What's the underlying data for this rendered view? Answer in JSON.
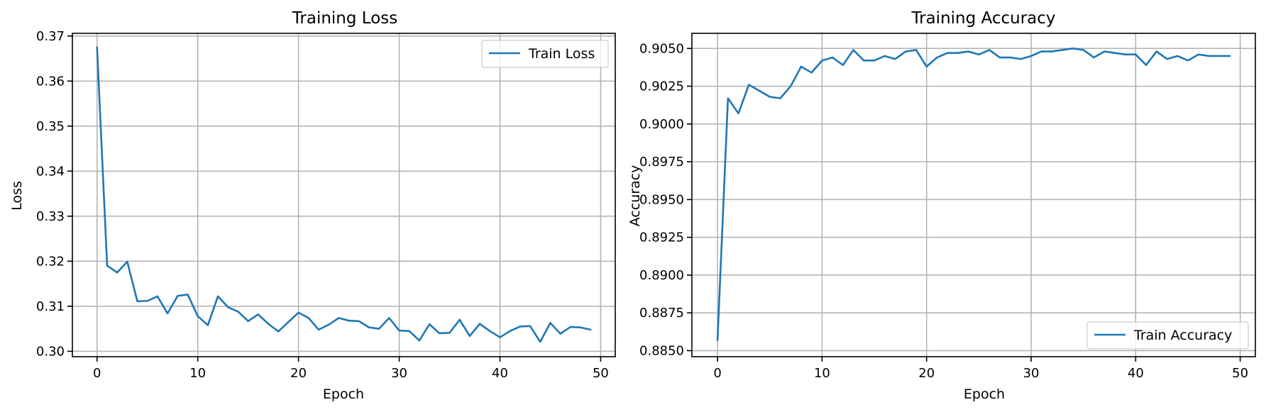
{
  "chart_data": [
    {
      "type": "line",
      "title": "Training Loss",
      "xlabel": "Epoch",
      "ylabel": "Loss",
      "xlim": [
        -2.45,
        51.45
      ],
      "ylim": [
        0.2988,
        0.3706
      ],
      "xticks": [
        0,
        10,
        20,
        30,
        40,
        50
      ],
      "xtick_labels": [
        "0",
        "10",
        "20",
        "30",
        "40",
        "50"
      ],
      "yticks": [
        0.3,
        0.31,
        0.32,
        0.33,
        0.34,
        0.35,
        0.36,
        0.37
      ],
      "ytick_labels": [
        "0.30",
        "0.31",
        "0.32",
        "0.33",
        "0.34",
        "0.35",
        "0.36",
        "0.37"
      ],
      "grid": true,
      "legend_position": "top-right",
      "series": [
        {
          "name": "Train Loss",
          "color": "#1f77b4",
          "x": [
            0,
            1,
            2,
            3,
            4,
            5,
            6,
            7,
            8,
            9,
            10,
            11,
            12,
            13,
            14,
            15,
            16,
            17,
            18,
            19,
            20,
            21,
            22,
            23,
            24,
            25,
            26,
            27,
            28,
            29,
            30,
            31,
            32,
            33,
            34,
            35,
            36,
            37,
            38,
            39,
            40,
            41,
            42,
            43,
            44,
            45,
            46,
            47,
            48,
            49
          ],
          "values": [
            0.3675,
            0.319,
            0.3175,
            0.3199,
            0.3111,
            0.3112,
            0.3122,
            0.3084,
            0.3123,
            0.3126,
            0.3078,
            0.3058,
            0.3122,
            0.3098,
            0.3088,
            0.3067,
            0.3082,
            0.3061,
            0.3044,
            0.3065,
            0.3086,
            0.3074,
            0.3048,
            0.3059,
            0.3074,
            0.3068,
            0.3067,
            0.3053,
            0.305,
            0.3074,
            0.3046,
            0.3045,
            0.3024,
            0.306,
            0.304,
            0.3041,
            0.307,
            0.3034,
            0.3061,
            0.3045,
            0.3031,
            0.3045,
            0.3055,
            0.3056,
            0.3021,
            0.3063,
            0.3039,
            0.3054,
            0.3053,
            0.3048
          ]
        }
      ]
    },
    {
      "type": "line",
      "title": "Training Accuracy",
      "xlabel": "Epoch",
      "ylabel": "Accuracy",
      "xlim": [
        -2.45,
        51.45
      ],
      "ylim": [
        0.8846,
        0.906
      ],
      "xticks": [
        0,
        10,
        20,
        30,
        40,
        50
      ],
      "xtick_labels": [
        "0",
        "10",
        "20",
        "30",
        "40",
        "50"
      ],
      "yticks": [
        0.885,
        0.8875,
        0.89,
        0.8925,
        0.895,
        0.8975,
        0.9,
        0.9025,
        0.905
      ],
      "ytick_labels": [
        "0.8850",
        "0.8875",
        "0.8900",
        "0.8925",
        "0.8950",
        "0.8975",
        "0.9000",
        "0.9025",
        "0.9050"
      ],
      "grid": true,
      "legend_position": "bottom-right",
      "series": [
        {
          "name": "Train Accuracy",
          "color": "#1f77b4",
          "x": [
            0,
            1,
            2,
            3,
            4,
            5,
            6,
            7,
            8,
            9,
            10,
            11,
            12,
            13,
            14,
            15,
            16,
            17,
            18,
            19,
            20,
            21,
            22,
            23,
            24,
            25,
            26,
            27,
            28,
            29,
            30,
            31,
            32,
            33,
            34,
            35,
            36,
            37,
            38,
            39,
            40,
            41,
            42,
            43,
            44,
            45,
            46,
            47,
            48,
            49
          ],
          "values": [
            0.8857,
            0.9017,
            0.9007,
            0.9026,
            0.9022,
            0.9018,
            0.9017,
            0.9025,
            0.9038,
            0.9034,
            0.9042,
            0.9044,
            0.9039,
            0.9049,
            0.9042,
            0.9042,
            0.9045,
            0.9043,
            0.9048,
            0.9049,
            0.9038,
            0.9044,
            0.9047,
            0.9047,
            0.9048,
            0.9046,
            0.9049,
            0.9044,
            0.9044,
            0.9043,
            0.9045,
            0.9048,
            0.9048,
            0.9049,
            0.905,
            0.9049,
            0.9044,
            0.9048,
            0.9047,
            0.9046,
            0.9046,
            0.9039,
            0.9048,
            0.9043,
            0.9045,
            0.9042,
            0.9046,
            0.9045,
            0.9045,
            0.9045
          ]
        }
      ]
    }
  ]
}
